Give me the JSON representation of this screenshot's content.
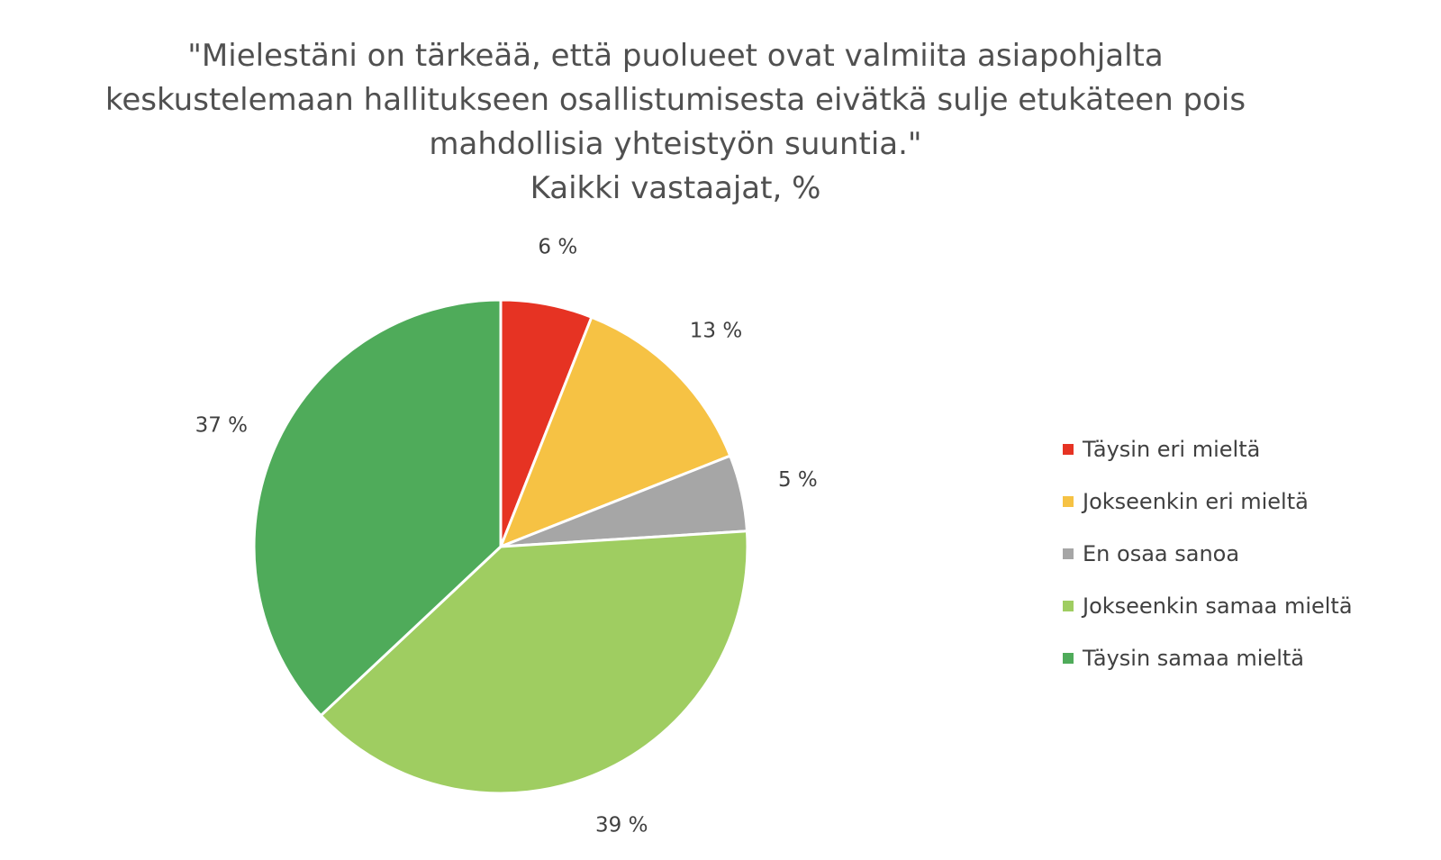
{
  "chart_data": {
    "type": "pie",
    "title": [
      "\"Mielestäni on tärkeää, että puolueet ovat valmiita asiapohjalta",
      "keskustelemaan hallitukseen osallistumisesta eivätkä sulje etukäteen pois",
      "mahdollisia yhteistyön suuntia.\"",
      "Kaikki vastaajat, %"
    ],
    "categories": [
      "Täysin eri mieltä",
      "Jokseenkin eri mieltä",
      "En osaa sanoa",
      "Jokseenkin samaa mieltä",
      "Täysin samaa mieltä"
    ],
    "values": [
      6,
      13,
      5,
      39,
      37
    ],
    "labels": [
      "6 %",
      "13 %",
      "5 %",
      "39 %",
      "37 %"
    ],
    "colors": [
      "#e63323",
      "#f6c244",
      "#a6a6a6",
      "#9fcd61",
      "#4fab5a"
    ],
    "legend_position": "right",
    "start_angle": "top",
    "direction": "clockwise"
  }
}
